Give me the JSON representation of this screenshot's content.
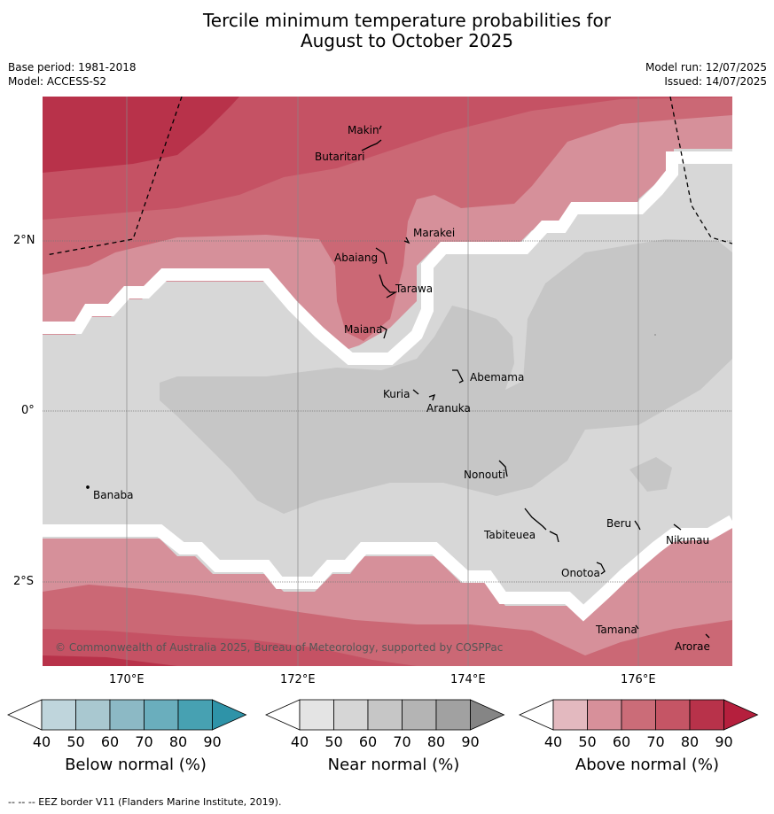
{
  "title_line1": "Tercile minimum temperature probabilities for",
  "title_line2": "August to October 2025",
  "meta": {
    "base_period": "Base period: 1981-2018",
    "model": "Model: ACCESS-S2",
    "model_run": "Model run: 12/07/2025",
    "issued": "Issued: 14/07/2025"
  },
  "map": {
    "lat_labels": [
      "2°N",
      "0°",
      "2°S"
    ],
    "lon_labels": [
      "170°E",
      "172°E",
      "174°E",
      "176°E"
    ],
    "copyright": "© Commonwealth of Australia 2025, Bureau of Meteorology, supported by COSPPac",
    "places": [
      "Makin",
      "Butaritari",
      "Marakei",
      "Abaiang",
      "Tarawa",
      "Maiana",
      "Abemama",
      "Kuria",
      "Aranuka",
      "Banaba",
      "Nonouti",
      "Beru",
      "Tabiteuea",
      "Nikunau",
      "Onotoa",
      "Tamana",
      "Arorae"
    ],
    "colors": {
      "above_80": "#b8324a",
      "above_70": "#c55264",
      "above_60": "#cb6875",
      "above_50": "#d6909a",
      "near_40": "#d7d7d7",
      "near_50": "#c6c6c6"
    }
  },
  "colorbars": [
    {
      "title": "Below normal (%)",
      "ticks": [
        "40",
        "50",
        "60",
        "70",
        "80",
        "90"
      ],
      "colors": [
        "#bfd5dc",
        "#a9c8d0",
        "#8cb9c5",
        "#6aaebd",
        "#47a1b2",
        "#2e93a8"
      ]
    },
    {
      "title": "Near normal (%)",
      "ticks": [
        "40",
        "50",
        "60",
        "70",
        "80",
        "90"
      ],
      "colors": [
        "#e4e4e4",
        "#d6d6d6",
        "#c6c6c6",
        "#b4b4b4",
        "#a1a1a1",
        "#858585"
      ]
    },
    {
      "title": "Above normal (%)",
      "ticks": [
        "40",
        "50",
        "60",
        "70",
        "80",
        "90"
      ],
      "colors": [
        "#e3b9bf",
        "#d7909a",
        "#cb6c78",
        "#c55565",
        "#b8324a",
        "#b51f3d"
      ]
    }
  ],
  "footer": "--  --  -- EEZ border V11 (Flanders Marine Institute, 2019)."
}
